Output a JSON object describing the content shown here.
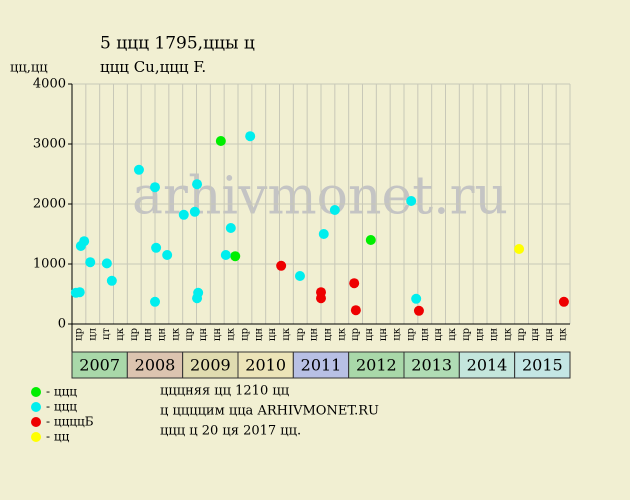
{
  "chart_data": {
    "type": "scatter",
    "title": "5 ццц 1795,ццы ц",
    "subtitle": "ццц Cu,ццц F.",
    "y_label": "цц,цц",
    "watermark": "arhivmonet.ru",
    "xlim": [
      2007,
      2016
    ],
    "ylim": [
      0,
      4000
    ],
    "yticks": [
      0,
      1000,
      2000,
      3000,
      4000
    ],
    "grid": true,
    "years": [
      "2007",
      "2008",
      "2009",
      "2010",
      "2011",
      "2012",
      "2013",
      "2014",
      "2015"
    ],
    "year_colors": [
      "#a9d8a9",
      "#dcc4b0",
      "#e0dcb0",
      "#ece4b8",
      "#b8c0e4",
      "#a9d8a9",
      "#b0dcb4",
      "#c4e6dc",
      "#c4e6e4"
    ],
    "quarter_labels": [
      "цр",
      "цл",
      "цт",
      "цк",
      "цр",
      "цн",
      "цн",
      "цк",
      "цр",
      "цн",
      "цн",
      "цк",
      "цр",
      "цн",
      "цн",
      "цк",
      "цр",
      "цн",
      "цн",
      "цк",
      "цр",
      "цн",
      "цн",
      "цк",
      "цр",
      "цн",
      "цн",
      "цк",
      "цр",
      "цн",
      "цн",
      "цк",
      "цр",
      "цн",
      "цн",
      "цк"
    ],
    "series": [
      {
        "name": "- ццц",
        "color": "#00ee00",
        "x": [
          2009.69,
          2009.95,
          2012.4
        ],
        "values": [
          3050,
          1130,
          1400
        ]
      },
      {
        "name": "- ццц",
        "color": "#00eeee",
        "x": [
          2007.07,
          2007.14,
          2007.16,
          2007.22,
          2007.33,
          2007.63,
          2007.72,
          2008.21,
          2008.5,
          2008.52,
          2008.5,
          2008.72,
          2009.02,
          2009.22,
          2009.26,
          2009.28,
          2009.26,
          2009.78,
          2009.87,
          2010.22,
          2011.12,
          2011.55,
          2011.75,
          2013.13,
          2013.22
        ],
        "values": [
          520,
          530,
          1300,
          1380,
          1030,
          1010,
          720,
          2570,
          2280,
          1270,
          370,
          1150,
          1820,
          1870,
          2330,
          520,
          430,
          1150,
          1600,
          3130,
          800,
          1500,
          1900,
          2050,
          420
        ]
      },
      {
        "name": "- ццццБ",
        "color": "#ee0000",
        "x": [
          2010.78,
          2011.5,
          2011.5,
          2012.1,
          2012.13,
          2013.27,
          2015.89
        ],
        "values": [
          970,
          530,
          430,
          680,
          230,
          220,
          370
        ]
      },
      {
        "name": "- цц",
        "color": "#ffff00",
        "x": [
          2015.08
        ],
        "values": [
          1250
        ]
      }
    ],
    "notes": [
      "цццняя цц 1210 цц",
      "ц ццццим цца ARHIVMONET.RU",
      "ццц ц 20 ця 2017 цц."
    ]
  }
}
